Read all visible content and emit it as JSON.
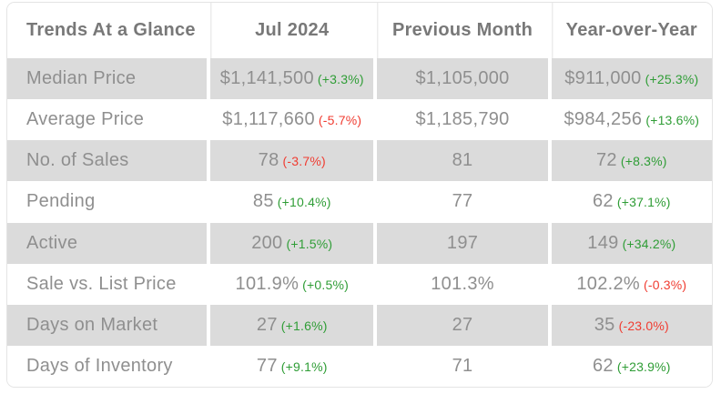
{
  "colors": {
    "green": "#2f9d36",
    "red": "#f03c31",
    "row_gray": "#dbdbdb",
    "header_text": "#787878",
    "body_text": "#8f8f8f",
    "card_border": "#e4e4e4",
    "separator": "#ececec"
  },
  "chart_data": {
    "type": "table",
    "title": "Trends At a Glance",
    "columns": [
      "Trends At a Glance",
      "Jul 2024",
      "Previous Month",
      "Year-over-Year"
    ],
    "rows": [
      {
        "label": "Median Price",
        "current": {
          "value": "$1,141,500",
          "change": "(+3.3%)",
          "direction": "up"
        },
        "previous": {
          "value": "$1,105,000"
        },
        "yoy": {
          "value": "$911,000",
          "change": "(+25.3%)",
          "direction": "up"
        }
      },
      {
        "label": "Average Price",
        "current": {
          "value": "$1,117,660",
          "change": "(-5.7%)",
          "direction": "down"
        },
        "previous": {
          "value": "$1,185,790"
        },
        "yoy": {
          "value": "$984,256",
          "change": "(+13.6%)",
          "direction": "up"
        }
      },
      {
        "label": "No. of Sales",
        "current": {
          "value": "78",
          "change": "(-3.7%)",
          "direction": "down"
        },
        "previous": {
          "value": "81"
        },
        "yoy": {
          "value": "72",
          "change": "(+8.3%)",
          "direction": "up"
        }
      },
      {
        "label": "Pending",
        "current": {
          "value": "85",
          "change": "(+10.4%)",
          "direction": "up"
        },
        "previous": {
          "value": "77"
        },
        "yoy": {
          "value": "62",
          "change": "(+37.1%)",
          "direction": "up"
        }
      },
      {
        "label": "Active",
        "current": {
          "value": "200",
          "change": "(+1.5%)",
          "direction": "up"
        },
        "previous": {
          "value": "197"
        },
        "yoy": {
          "value": "149",
          "change": "(+34.2%)",
          "direction": "up"
        }
      },
      {
        "label": "Sale vs. List Price",
        "current": {
          "value": "101.9%",
          "change": "(+0.5%)",
          "direction": "up"
        },
        "previous": {
          "value": "101.3%"
        },
        "yoy": {
          "value": "102.2%",
          "change": "(-0.3%)",
          "direction": "down"
        }
      },
      {
        "label": "Days on Market",
        "current": {
          "value": "27",
          "change": "(+1.6%)",
          "direction": "up"
        },
        "previous": {
          "value": "27"
        },
        "yoy": {
          "value": "35",
          "change": "(-23.0%)",
          "direction": "down"
        }
      },
      {
        "label": "Days of Inventory",
        "current": {
          "value": "77",
          "change": "(+9.1%)",
          "direction": "up"
        },
        "previous": {
          "value": "71"
        },
        "yoy": {
          "value": "62",
          "change": "(+23.9%)",
          "direction": "up"
        }
      }
    ]
  }
}
